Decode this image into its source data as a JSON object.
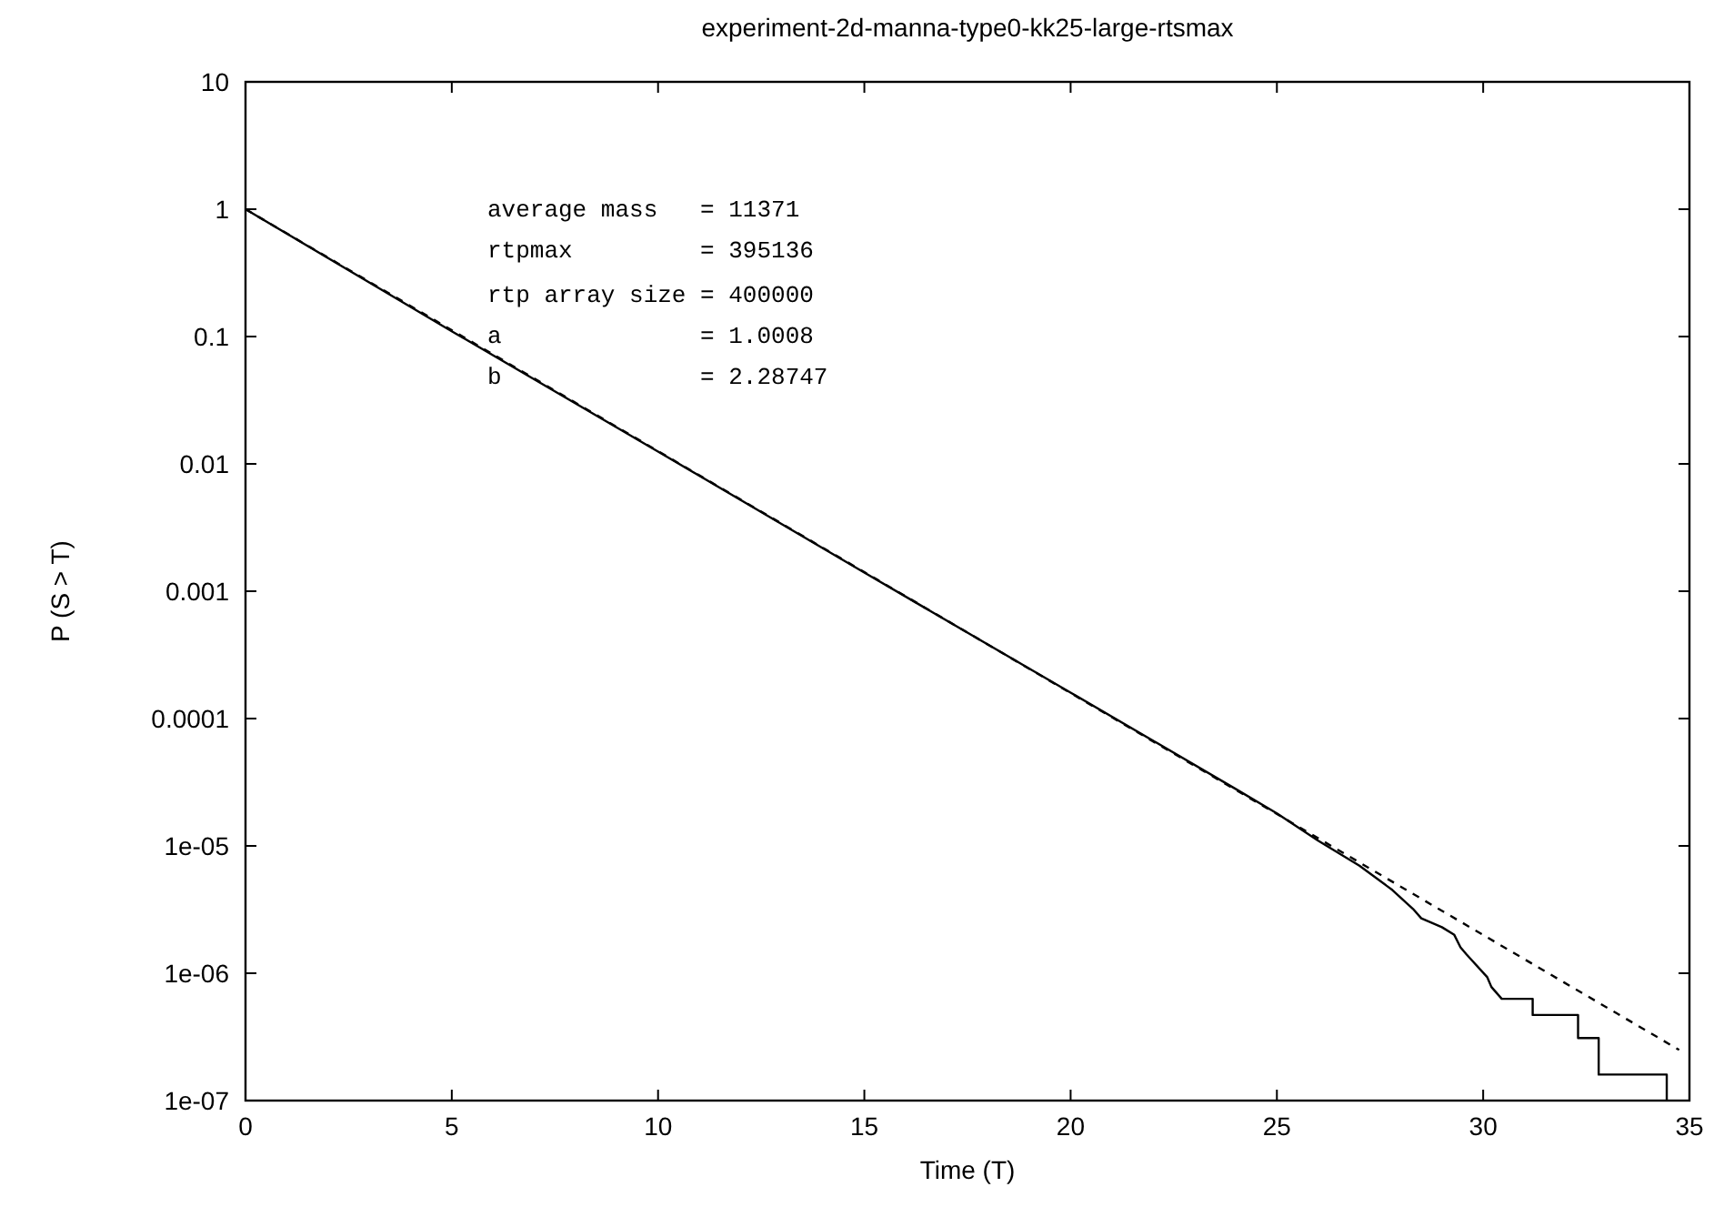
{
  "chart_data": {
    "type": "line",
    "title": "experiment-2d-manna-type0-kk25-large-rtsmax",
    "xlabel": "Time (T)",
    "ylabel": "P (S > T)",
    "log": "y",
    "grid": false,
    "xlim": [
      0,
      35
    ],
    "xticks": [
      0,
      5,
      10,
      15,
      20,
      25,
      30,
      35
    ],
    "ylim": [
      1e-07,
      10
    ],
    "yticks": [
      {
        "value": 1e-07,
        "label": "1e-07"
      },
      {
        "value": 1e-06,
        "label": "1e-06"
      },
      {
        "value": 1e-05,
        "label": "1e-05"
      },
      0.0001,
      0.001,
      0.01,
      0.1,
      1,
      10
    ],
    "annotations": [
      "average mass   = 11371",
      "rtpmax         = 395136",
      "rtp array size = 400000",
      "a              = 1.0008",
      "b              = 2.28747"
    ],
    "series": [
      {
        "color": "#000000",
        "line_style": "solid",
        "x": [
          0,
          5,
          10,
          15,
          20,
          24,
          25,
          26,
          27,
          27.8,
          28.3,
          28.5,
          29.0,
          29.3,
          29.45,
          29.6,
          30.1,
          30.2,
          30.45,
          31.2,
          31.2,
          32.3,
          32.3,
          32.8,
          32.8,
          34.45,
          34.45
        ],
        "values": [
          1,
          0.11,
          0.0125,
          0.0014,
          0.00016,
          2.8e-05,
          1.8e-05,
          1.1e-05,
          7e-06,
          4.5e-06,
          3.2e-06,
          2.7e-06,
          2.3e-06,
          2e-06,
          1.6e-06,
          1.4e-06,
          9.3e-07,
          7.8e-07,
          6.3e-07,
          6.3e-07,
          4.7e-07,
          4.7e-07,
          3.1e-07,
          3.1e-07,
          1.6e-07,
          1.6e-07,
          1e-07
        ]
      },
      {
        "color": "#000000",
        "line_style": "dashed",
        "x": [
          0,
          34.75
        ],
        "values": [
          1,
          2.5e-07
        ]
      }
    ]
  }
}
